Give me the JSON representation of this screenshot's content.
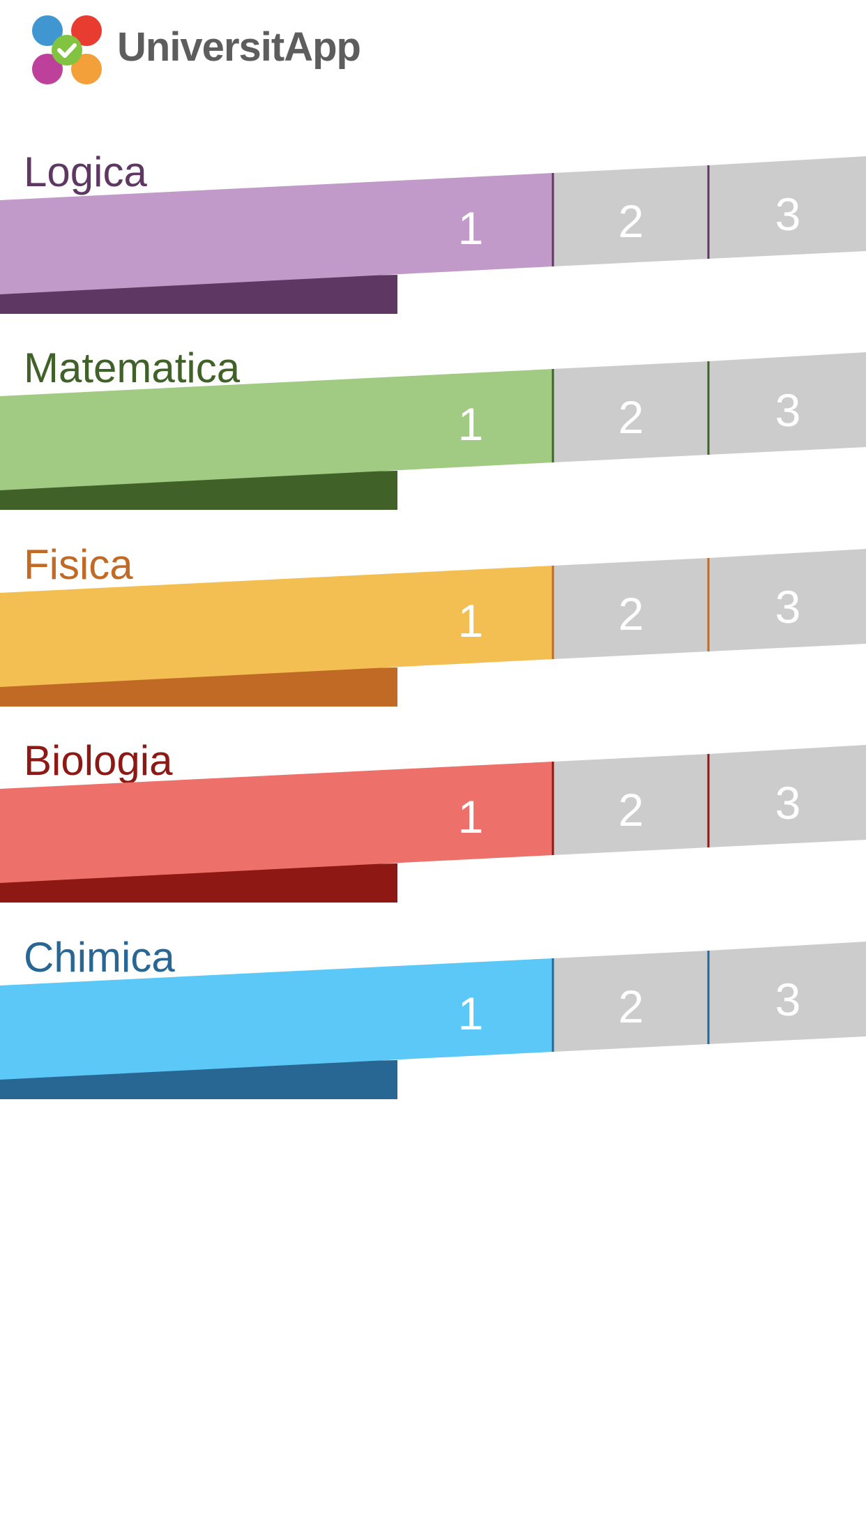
{
  "app": {
    "title": "UniversitApp",
    "logo_icon": "four-circles-checkmark-icon",
    "logo_colors": [
      "#3f96d0",
      "#e83c30",
      "#bd419a",
      "#f4a03a",
      "#82c341"
    ]
  },
  "subjects": [
    {
      "name": "Logica",
      "color_light": "#c29ac9",
      "color_dark": "#5e3862",
      "levels": [
        "1",
        "2",
        "3"
      ]
    },
    {
      "name": "Matematica",
      "color_light": "#a1ca82",
      "color_dark": "#406127",
      "levels": [
        "1",
        "2",
        "3"
      ]
    },
    {
      "name": "Fisica",
      "color_light": "#f4bf52",
      "color_dark": "#c06a26",
      "levels": [
        "1",
        "2",
        "3"
      ]
    },
    {
      "name": "Biologia",
      "color_light": "#ee706a",
      "color_dark": "#8e1813",
      "levels": [
        "1",
        "2",
        "3"
      ]
    },
    {
      "name": "Chimica",
      "color_light": "#5bc8f8",
      "color_dark": "#286694",
      "levels": [
        "1",
        "2",
        "3"
      ]
    }
  ],
  "inactive_level_color": "#cccccc"
}
